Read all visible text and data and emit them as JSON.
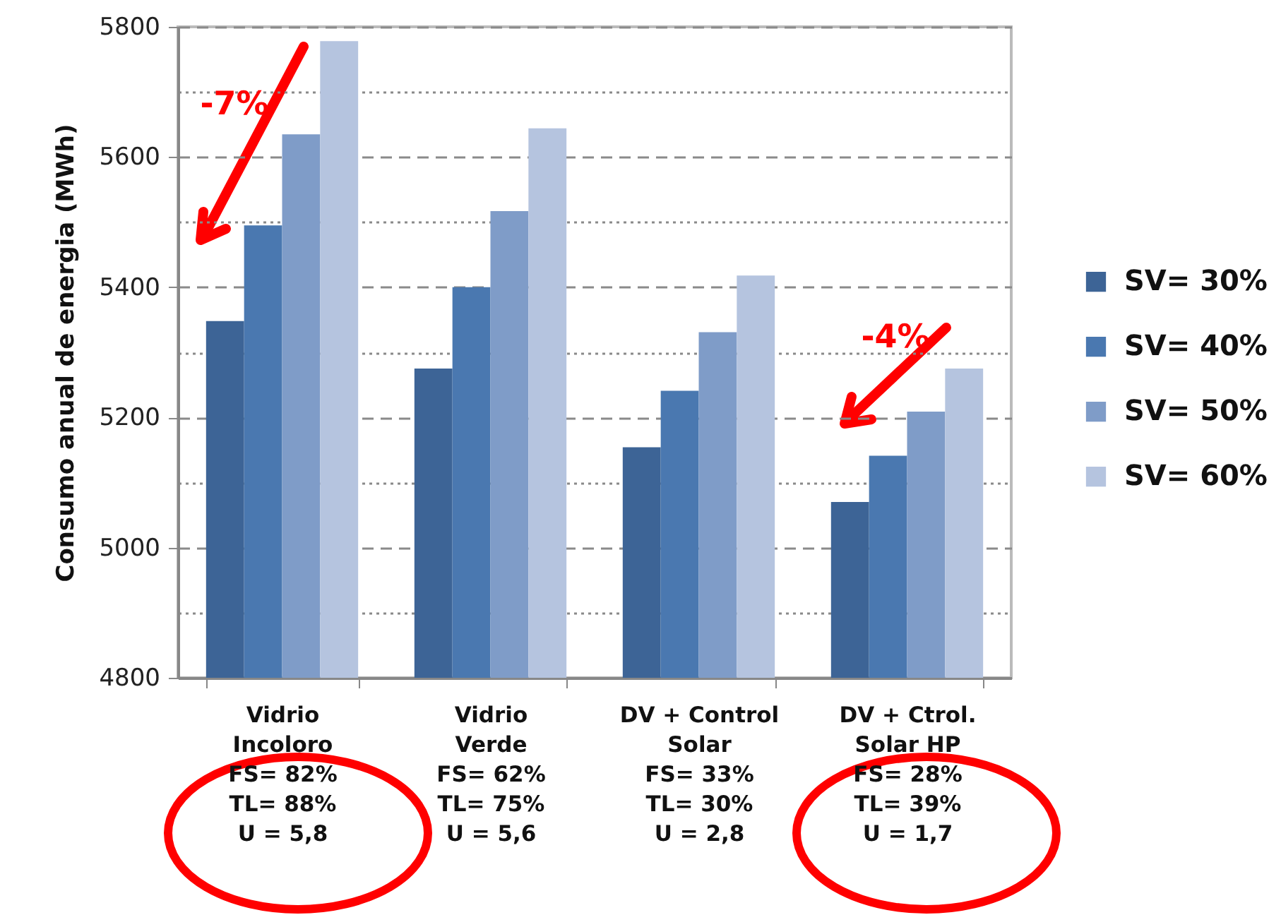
{
  "chart_data": {
    "type": "bar",
    "ylabel": "Consumo anual de energia (MWh)",
    "categories": [
      "Vidrio\nIncoloro\nFS= 82%\nTL= 88%\nU = 5,8",
      "Vidrio\nVerde\nFS= 62%\nTL= 75%\nU = 5,6",
      "DV + Control\nSolar\nFS= 33%\nTL= 30%\nU = 2,8",
      "DV + Ctrol.\nSolar HP\nFS= 28%\nTL= 39%\nU = 1,7"
    ],
    "series": [
      {
        "name": "SV= 30%",
        "color": "#3d6496",
        "values": [
          5348,
          5275,
          5154,
          5070
        ]
      },
      {
        "name": "SV= 40%",
        "color": "#4a78b0",
        "values": [
          5495,
          5400,
          5241,
          5141
        ]
      },
      {
        "name": "SV= 50%",
        "color": "#7f9cc8",
        "values": [
          5635,
          5517,
          5331,
          5209
        ]
      },
      {
        "name": "SV= 60%",
        "color": "#b5c4df",
        "values": [
          5778,
          5644,
          5418,
          5275
        ]
      }
    ],
    "ylim": [
      4800,
      5800
    ],
    "yticks": [
      4800,
      {
        "value": 4900,
        "label": null
      },
      5000,
      {
        "value": 5100,
        "label": null
      },
      5200,
      {
        "value": 5300,
        "label": null
      },
      5400,
      {
        "value": 5500,
        "label": null
      },
      5600,
      {
        "value": 5700,
        "label": null
      },
      5800
    ],
    "grid": "y",
    "legend": "right",
    "annotations": [
      "-7%",
      "-4%"
    ]
  }
}
